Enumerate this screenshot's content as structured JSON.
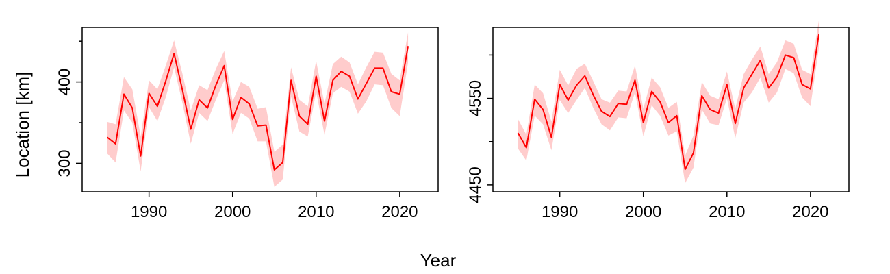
{
  "figure": {
    "xlabel": "Year",
    "ylabel": "Location [km]",
    "line_color": "#ff0000",
    "band_color": "#ffcccc",
    "frame_color": "#000000",
    "background": "#ffffff"
  },
  "chart_data": [
    {
      "type": "line",
      "name": "left-panel",
      "xlim": [
        1982,
        2024.6
      ],
      "ylim": [
        265,
        467
      ],
      "xticks": [
        1990,
        2000,
        2010,
        2020
      ],
      "xtick_labels": [
        "1990",
        "2000",
        "2010",
        "2020"
      ],
      "yticks_major": [
        300,
        400
      ],
      "ytick_labels": [
        "300",
        "400"
      ],
      "yticks_minor": [
        350,
        450
      ],
      "x": [
        1985,
        1986,
        1987,
        1988,
        1989,
        1990,
        1991,
        1992,
        1993,
        1994,
        1995,
        1996,
        1997,
        1998,
        1999,
        2000,
        2001,
        2002,
        2003,
        2004,
        2005,
        2006,
        2007,
        2008,
        2009,
        2010,
        2011,
        2012,
        2013,
        2014,
        2015,
        2016,
        2017,
        2018,
        2019,
        2020,
        2021
      ],
      "series": [
        {
          "name": "location",
          "values": [
            332,
            324,
            385,
            368,
            309,
            386,
            370,
            401,
            435,
            390,
            342,
            378,
            368,
            396,
            420,
            354,
            381,
            373,
            346,
            347,
            292,
            301,
            402,
            358,
            348,
            407,
            352,
            402,
            413,
            407,
            379,
            398,
            417,
            417,
            388,
            385,
            444
          ],
          "lower": [
            312,
            301,
            365,
            350,
            290,
            369,
            352,
            381,
            418,
            374,
            324,
            362,
            352,
            378,
            402,
            336,
            362,
            355,
            327,
            327,
            271,
            280,
            382,
            339,
            333,
            388,
            335,
            386,
            394,
            388,
            361,
            376,
            397,
            396,
            368,
            358,
            424
          ],
          "upper": [
            351,
            348,
            406,
            391,
            333,
            402,
            391,
            420,
            451,
            410,
            365,
            396,
            390,
            416,
            438,
            376,
            400,
            394,
            367,
            369,
            314,
            323,
            418,
            378,
            370,
            426,
            373,
            422,
            431,
            424,
            397,
            418,
            437,
            436,
            410,
            402,
            461
          ]
        }
      ]
    },
    {
      "type": "line",
      "name": "right-panel",
      "xlim": [
        1982,
        2024.6
      ],
      "ylim": [
        4442,
        4632
      ],
      "xticks": [
        1990,
        2000,
        2010,
        2020
      ],
      "xtick_labels": [
        "1990",
        "2000",
        "2010",
        "2020"
      ],
      "yticks_major": [
        4450,
        4550
      ],
      "ytick_labels": [
        "4450",
        "4550"
      ],
      "yticks_minor": [
        4500,
        4600
      ],
      "x": [
        1985,
        1986,
        1987,
        1988,
        1989,
        1990,
        1991,
        1992,
        1993,
        1994,
        1995,
        1996,
        1997,
        1998,
        1999,
        2000,
        2001,
        2002,
        2003,
        2004,
        2005,
        2006,
        2007,
        2008,
        2009,
        2010,
        2011,
        2012,
        2013,
        2014,
        2015,
        2016,
        2017,
        2018,
        2019,
        2020,
        2021
      ],
      "series": [
        {
          "name": "location",
          "values": [
            4510,
            4493,
            4549,
            4537,
            4505,
            4566,
            4548,
            4565,
            4576,
            4554,
            4535,
            4529,
            4544,
            4543,
            4571,
            4522,
            4558,
            4546,
            4522,
            4530,
            4468,
            4487,
            4553,
            4537,
            4533,
            4566,
            4521,
            4562,
            4578,
            4594,
            4562,
            4575,
            4600,
            4597,
            4566,
            4561,
            4624
          ],
          "lower": [
            4492,
            4478,
            4530,
            4520,
            4490,
            4548,
            4533,
            4548,
            4562,
            4539,
            4520,
            4513,
            4528,
            4527,
            4557,
            4506,
            4542,
            4530,
            4507,
            4512,
            4452,
            4470,
            4537,
            4521,
            4519,
            4550,
            4504,
            4545,
            4557,
            4574,
            4545,
            4557,
            4584,
            4579,
            4551,
            4541,
            4608
          ],
          "upper": [
            4526,
            4508,
            4566,
            4556,
            4523,
            4583,
            4565,
            4584,
            4590,
            4570,
            4549,
            4545,
            4559,
            4558,
            4588,
            4538,
            4574,
            4563,
            4539,
            4546,
            4484,
            4507,
            4569,
            4553,
            4549,
            4581,
            4538,
            4578,
            4595,
            4610,
            4578,
            4592,
            4617,
            4613,
            4583,
            4578,
            4640
          ]
        }
      ]
    }
  ]
}
